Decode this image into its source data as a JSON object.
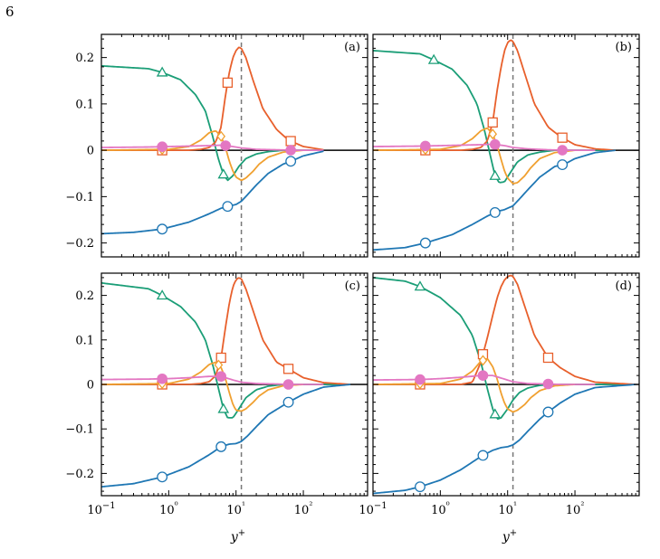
{
  "page_number": "6",
  "chart_data": {
    "type": "line",
    "xscale": "log",
    "xlim": [
      0.1,
      900
    ],
    "x_tick_values": [
      0.1,
      1,
      10,
      100
    ],
    "x_tick_labels": [
      "10−1",
      "10⁰",
      "10¹",
      "10²"
    ],
    "xlabel": "y+",
    "ylabel": "",
    "y_tick_values": [
      0.2,
      0.1,
      0,
      -0.1,
      -0.2
    ],
    "y_tick_labels": [
      "0.2",
      "0.1",
      "0",
      "−0.1",
      "−0.2"
    ],
    "grid": false,
    "reference_vline_x": 12,
    "colors": {
      "green": "#1b9e77",
      "red": "#e8602c",
      "orange": "#f0a030",
      "magenta": "#e377c2",
      "blue": "#1f77b4",
      "zero": "#000000",
      "vline": "#777777"
    },
    "panels": [
      {
        "label": "(a)",
        "ylim": [
          -0.23,
          0.25
        ],
        "series": [
          {
            "color_key": "green",
            "marker": "triangle",
            "x": [
              0.1,
              0.5,
              0.8,
              1.5,
              2.5,
              3.5,
              4.5,
              5.5,
              6.5,
              7.5,
              9,
              11,
              14,
              20,
              30,
              50,
              100,
              200
            ],
            "y": [
              0.182,
              0.176,
              0.168,
              0.152,
              0.12,
              0.085,
              0.03,
              -0.02,
              -0.052,
              -0.065,
              -0.055,
              -0.035,
              -0.018,
              -0.008,
              -0.003,
              0,
              0,
              0
            ],
            "markers_x": [
              0.8,
              6.5
            ]
          },
          {
            "color_key": "red",
            "marker": "square",
            "x": [
              0.1,
              1,
              2,
              3,
              4,
              5,
              6,
              7,
              8,
              9,
              10,
              11,
              12,
              14,
              18,
              25,
              40,
              60,
              100,
              200
            ],
            "y": [
              0,
              0,
              0,
              0.002,
              0.006,
              0.018,
              0.05,
              0.12,
              0.17,
              0.2,
              0.215,
              0.222,
              0.22,
              0.2,
              0.15,
              0.09,
              0.045,
              0.022,
              0.008,
              0.001
            ],
            "markers_x": [
              0.8,
              7.5,
              65
            ]
          },
          {
            "color_key": "orange",
            "marker": "diamond",
            "x": [
              0.1,
              1,
              2,
              3,
              4,
              5,
              6,
              7,
              8,
              9,
              10,
              12,
              14,
              18,
              22,
              30,
              50,
              100
            ],
            "y": [
              0,
              0.002,
              0.008,
              0.022,
              0.038,
              0.042,
              0.03,
              0.005,
              -0.025,
              -0.045,
              -0.058,
              -0.065,
              -0.06,
              -0.045,
              -0.03,
              -0.015,
              -0.004,
              0
            ],
            "markers_x": [
              0.8,
              6
            ]
          },
          {
            "color_key": "magenta",
            "marker": "filled-circle",
            "x": [
              0.1,
              0.5,
              1,
              2,
              4,
              6,
              7,
              9,
              12,
              20,
              40,
              70,
              200
            ],
            "y": [
              0.006,
              0.007,
              0.008,
              0.009,
              0.01,
              0.011,
              0.01,
              0.008,
              0.005,
              0.002,
              0.001,
              0,
              0
            ],
            "markers_x": [
              0.8,
              7,
              65
            ]
          },
          {
            "color_key": "blue",
            "marker": "circle",
            "x": [
              0.1,
              0.3,
              0.8,
              2,
              4,
              6,
              8,
              10,
              12,
              15,
              20,
              30,
              50,
              70,
              100,
              200
            ],
            "y": [
              -0.18,
              -0.177,
              -0.17,
              -0.155,
              -0.137,
              -0.125,
              -0.12,
              -0.117,
              -0.11,
              -0.095,
              -0.075,
              -0.05,
              -0.03,
              -0.022,
              -0.012,
              -0.002
            ],
            "markers_x": [
              0.8,
              7.5,
              65
            ]
          }
        ]
      },
      {
        "label": "(b)",
        "ylim": [
          -0.23,
          0.25
        ],
        "series": [
          {
            "color_key": "green",
            "marker": "triangle",
            "x": [
              0.1,
              0.5,
              0.8,
              1.5,
              2.5,
              3.5,
              4.5,
              5.5,
              6.5,
              7.5,
              9,
              11,
              14,
              20,
              30,
              50,
              100,
              200,
              400
            ],
            "y": [
              0.215,
              0.208,
              0.195,
              0.175,
              0.14,
              0.1,
              0.045,
              -0.01,
              -0.055,
              -0.07,
              -0.068,
              -0.048,
              -0.025,
              -0.01,
              -0.004,
              0,
              0,
              0,
              0
            ],
            "markers_x": [
              0.8,
              6.5
            ]
          },
          {
            "color_key": "red",
            "marker": "square",
            "x": [
              0.1,
              1,
              2,
              3,
              4,
              5,
              6,
              7,
              8,
              9,
              10,
              11,
              12,
              14,
              18,
              25,
              40,
              60,
              100,
              200,
              400
            ],
            "y": [
              0,
              0,
              0,
              0.002,
              0.006,
              0.02,
              0.06,
              0.13,
              0.18,
              0.215,
              0.232,
              0.238,
              0.235,
              0.215,
              0.165,
              0.1,
              0.05,
              0.03,
              0.012,
              0.003,
              0
            ],
            "markers_x": [
              0.6,
              6,
              65
            ]
          },
          {
            "color_key": "orange",
            "marker": "diamond",
            "x": [
              0.1,
              1,
              2,
              3,
              4,
              5,
              6,
              7,
              8,
              9,
              10,
              12,
              14,
              18,
              22,
              30,
              50,
              100
            ],
            "y": [
              0,
              0.002,
              0.01,
              0.025,
              0.042,
              0.048,
              0.035,
              0.01,
              -0.02,
              -0.045,
              -0.06,
              -0.072,
              -0.07,
              -0.055,
              -0.038,
              -0.018,
              -0.005,
              0
            ],
            "markers_x": [
              0.6,
              6
            ]
          },
          {
            "color_key": "magenta",
            "marker": "filled-circle",
            "x": [
              0.1,
              0.5,
              1,
              2,
              4,
              6,
              7,
              9,
              12,
              20,
              40,
              70,
              200
            ],
            "y": [
              0.008,
              0.009,
              0.01,
              0.011,
              0.012,
              0.013,
              0.012,
              0.01,
              0.006,
              0.003,
              0.001,
              0,
              0
            ],
            "markers_x": [
              0.6,
              6.5,
              65
            ]
          },
          {
            "color_key": "blue",
            "marker": "circle",
            "x": [
              0.1,
              0.3,
              0.6,
              1.5,
              3,
              5,
              7,
              9,
              12,
              15,
              20,
              30,
              50,
              70,
              100,
              200,
              400
            ],
            "y": [
              -0.215,
              -0.21,
              -0.2,
              -0.182,
              -0.16,
              -0.142,
              -0.132,
              -0.128,
              -0.12,
              -0.105,
              -0.085,
              -0.058,
              -0.035,
              -0.03,
              -0.018,
              -0.005,
              0
            ],
            "markers_x": [
              0.6,
              6.5,
              65
            ]
          }
        ]
      },
      {
        "label": "(c)",
        "ylim": [
          -0.25,
          0.25
        ],
        "series": [
          {
            "color_key": "green",
            "marker": "triangle",
            "x": [
              0.1,
              0.5,
              0.8,
              1.5,
              2.5,
              3.5,
              4.5,
              5.5,
              6.5,
              7.5,
              9,
              11,
              14,
              20,
              30,
              50,
              100,
              200,
              500
            ],
            "y": [
              0.228,
              0.215,
              0.2,
              0.175,
              0.14,
              0.1,
              0.045,
              -0.01,
              -0.055,
              -0.075,
              -0.075,
              -0.055,
              -0.03,
              -0.012,
              -0.004,
              0,
              0,
              0,
              0
            ],
            "markers_x": [
              0.8,
              6.5
            ]
          },
          {
            "color_key": "red",
            "marker": "square",
            "x": [
              0.1,
              1,
              2,
              3,
              4,
              5,
              6,
              7,
              8,
              9,
              10,
              11,
              12,
              14,
              18,
              25,
              40,
              60,
              100,
              200,
              500
            ],
            "y": [
              0,
              0,
              0,
              0.002,
              0.006,
              0.02,
              0.06,
              0.13,
              0.185,
              0.22,
              0.235,
              0.24,
              0.237,
              0.215,
              0.165,
              0.1,
              0.05,
              0.035,
              0.015,
              0.004,
              0
            ],
            "markers_x": [
              0.8,
              6,
              60
            ]
          },
          {
            "color_key": "orange",
            "marker": "diamond",
            "x": [
              0.1,
              1,
              2,
              3,
              4,
              5,
              6,
              7,
              8,
              9,
              10,
              12,
              14,
              18,
              22,
              30,
              50,
              100
            ],
            "y": [
              0,
              0.002,
              0.012,
              0.028,
              0.045,
              0.05,
              0.038,
              0.012,
              -0.02,
              -0.045,
              -0.058,
              -0.06,
              -0.055,
              -0.04,
              -0.026,
              -0.012,
              -0.003,
              0
            ],
            "markers_x": [
              0.8,
              5.5
            ]
          },
          {
            "color_key": "magenta",
            "marker": "filled-circle",
            "x": [
              0.1,
              0.5,
              1,
              2,
              4,
              6,
              7,
              9,
              12,
              20,
              40,
              60,
              200
            ],
            "y": [
              0.011,
              0.012,
              0.013,
              0.015,
              0.018,
              0.018,
              0.015,
              0.01,
              0.005,
              0.002,
              0.001,
              0,
              0
            ],
            "markers_x": [
              0.8,
              6,
              60
            ]
          },
          {
            "color_key": "blue",
            "marker": "circle",
            "x": [
              0.1,
              0.3,
              0.8,
              2,
              4,
              6,
              8,
              10,
              12,
              15,
              20,
              30,
              60,
              100,
              200,
              500
            ],
            "y": [
              -0.23,
              -0.223,
              -0.208,
              -0.185,
              -0.158,
              -0.14,
              -0.134,
              -0.133,
              -0.128,
              -0.115,
              -0.095,
              -0.068,
              -0.04,
              -0.022,
              -0.006,
              0
            ],
            "markers_x": [
              0.8,
              6,
              60
            ]
          }
        ]
      },
      {
        "label": "(d)",
        "ylim": [
          -0.25,
          0.25
        ],
        "series": [
          {
            "color_key": "green",
            "marker": "triangle",
            "x": [
              0.1,
              0.3,
              0.5,
              1,
              2,
              3,
              4,
              5,
              6,
              7,
              8,
              10,
              12,
              15,
              20,
              30,
              50,
              100,
              200,
              800
            ],
            "y": [
              0.24,
              0.232,
              0.22,
              0.195,
              0.155,
              0.11,
              0.05,
              -0.01,
              -0.055,
              -0.078,
              -0.075,
              -0.055,
              -0.035,
              -0.018,
              -0.008,
              -0.002,
              0,
              0,
              0,
              0
            ],
            "markers_x": [
              0.5,
              6.5
            ]
          },
          {
            "color_key": "red",
            "marker": "square",
            "x": [
              0.1,
              1,
              2,
              3,
              4,
              5,
              6,
              7,
              8,
              9,
              10,
              11,
              12,
              14,
              18,
              25,
              40,
              60,
              100,
              200,
              800
            ],
            "y": [
              0,
              0,
              0,
              0.005,
              0.05,
              0.105,
              0.155,
              0.195,
              0.22,
              0.235,
              0.242,
              0.245,
              0.243,
              0.225,
              0.175,
              0.11,
              0.06,
              0.038,
              0.018,
              0.005,
              0
            ],
            "markers_x": [
              0.5,
              4.3,
              40
            ]
          },
          {
            "color_key": "orange",
            "marker": "diamond",
            "x": [
              0.1,
              1,
              2,
              3,
              4,
              5,
              6,
              7,
              8,
              9,
              10,
              12,
              14,
              18,
              22,
              30,
              50,
              100
            ],
            "y": [
              0,
              0.002,
              0.012,
              0.03,
              0.052,
              0.058,
              0.04,
              0.012,
              -0.02,
              -0.042,
              -0.055,
              -0.062,
              -0.058,
              -0.045,
              -0.03,
              -0.014,
              -0.003,
              0
            ],
            "markers_x": [
              0.5,
              4.3
            ]
          },
          {
            "color_key": "magenta",
            "marker": "filled-circle",
            "x": [
              0.1,
              0.5,
              1,
              2,
              4,
              6,
              7,
              9,
              12,
              20,
              40,
              60,
              200
            ],
            "y": [
              0.01,
              0.011,
              0.013,
              0.016,
              0.02,
              0.02,
              0.017,
              0.012,
              0.006,
              0.002,
              0.001,
              0,
              0
            ],
            "markers_x": [
              0.5,
              4.3,
              40
            ]
          },
          {
            "color_key": "blue",
            "marker": "circle",
            "x": [
              0.1,
              0.3,
              0.5,
              1,
              2,
              4,
              6,
              8,
              10,
              12,
              15,
              20,
              30,
              40,
              60,
              100,
              200,
              800
            ],
            "y": [
              -0.245,
              -0.238,
              -0.23,
              -0.215,
              -0.192,
              -0.162,
              -0.148,
              -0.142,
              -0.14,
              -0.136,
              -0.125,
              -0.105,
              -0.078,
              -0.062,
              -0.042,
              -0.022,
              -0.007,
              0
            ],
            "markers_x": [
              0.5,
              4.3,
              40
            ]
          }
        ]
      }
    ]
  }
}
